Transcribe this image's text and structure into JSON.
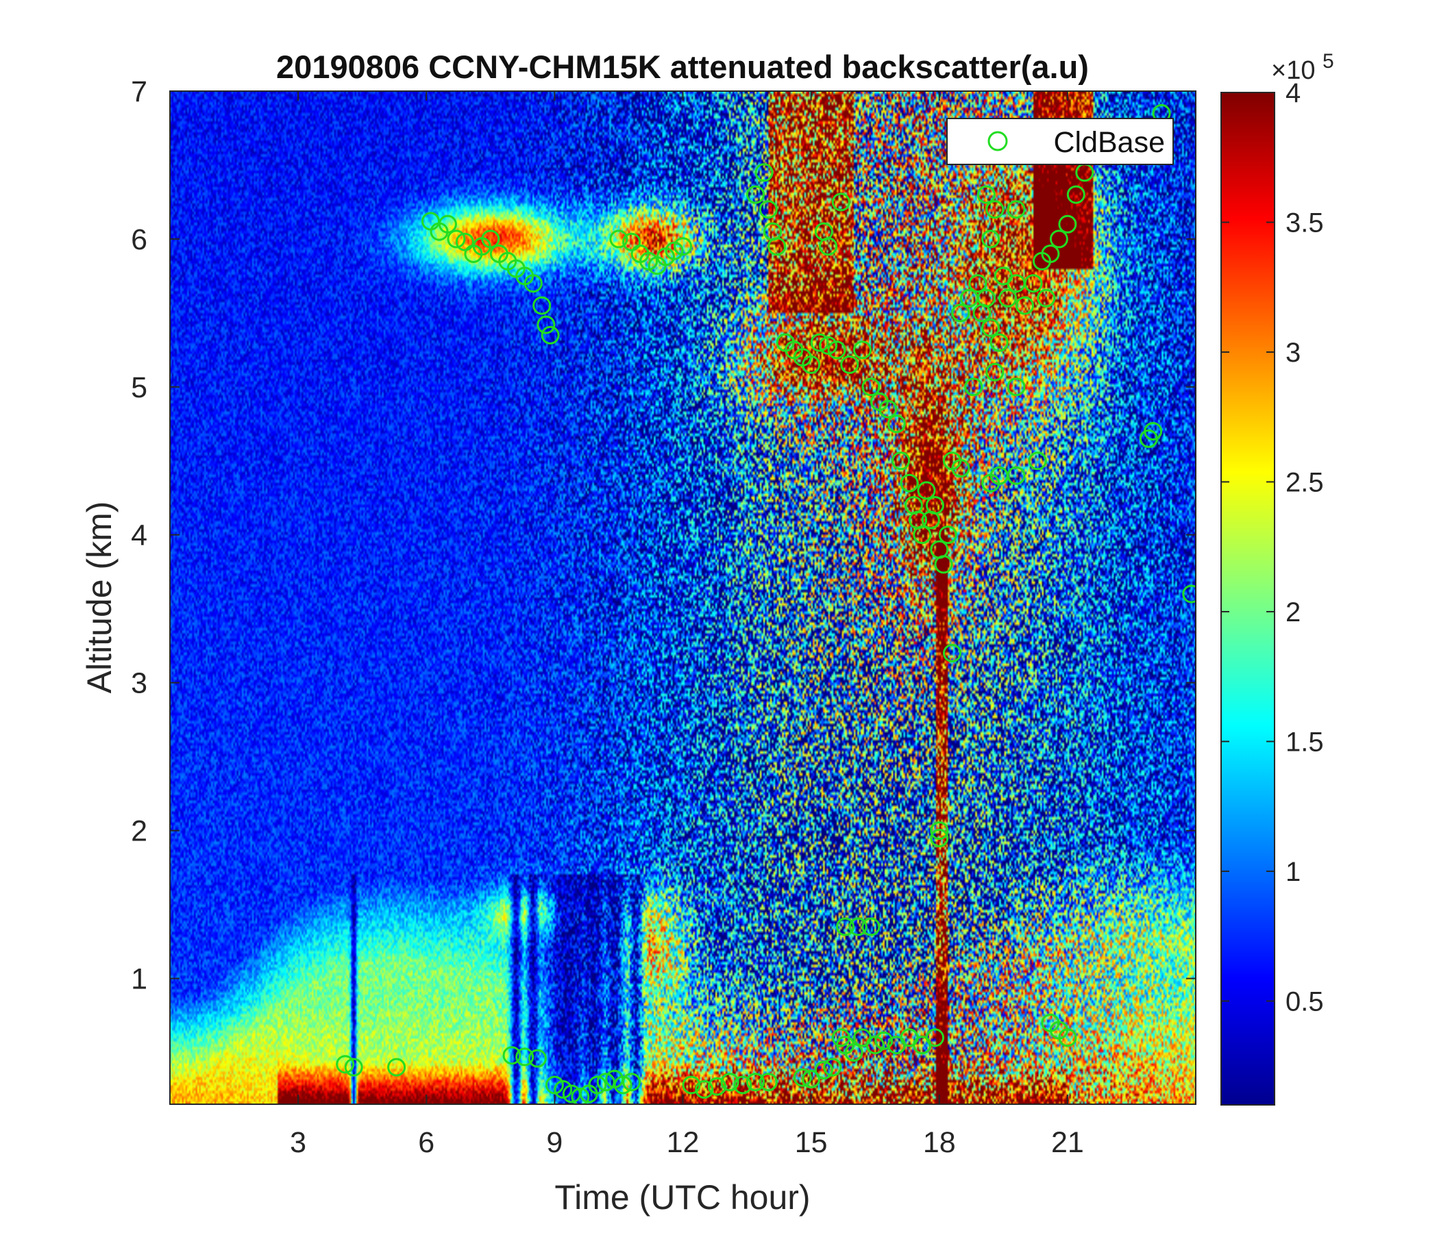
{
  "chart_data": {
    "type": "heatmap",
    "title": "20190806 CCNY-CHM15K attenuated backscatter(a.u)",
    "xlabel": "Time (UTC hour)",
    "ylabel": "Altitude (km)",
    "xlim": [
      0,
      24
    ],
    "ylim": [
      0.15,
      7
    ],
    "x_ticks": [
      3,
      6,
      9,
      12,
      15,
      18,
      21
    ],
    "x_tick_labels": [
      "3",
      "6",
      "9",
      "12",
      "15",
      "18",
      "21"
    ],
    "y_ticks": [
      1,
      2,
      3,
      4,
      5,
      6,
      7
    ],
    "y_tick_labels": [
      "1",
      "2",
      "3",
      "4",
      "5",
      "6",
      "7"
    ],
    "colormap": "jet",
    "colorbar": {
      "range": [
        0.1,
        4
      ],
      "ticks": [
        0.5,
        1,
        1.5,
        2,
        2.5,
        3,
        3.5,
        4
      ],
      "tick_labels": [
        "0.5",
        "1",
        "1.5",
        "2",
        "2.5",
        "3",
        "3.5",
        "4"
      ],
      "exponent_label": "×10",
      "exponent_power": "5"
    },
    "legend": {
      "position": "top-right",
      "entries": [
        "CldBase"
      ]
    },
    "colors": {
      "marker": "#22dd22",
      "background": "#ffffff",
      "text": "#1a1a1a"
    },
    "series": [
      {
        "name": "CldBase",
        "marker": "circle",
        "points": [
          [
            4.1,
            0.42
          ],
          [
            4.3,
            0.4
          ],
          [
            5.3,
            0.4
          ],
          [
            6.1,
            6.12
          ],
          [
            6.3,
            6.05
          ],
          [
            6.5,
            6.1
          ],
          [
            6.7,
            6.0
          ],
          [
            6.9,
            5.98
          ],
          [
            7.1,
            5.9
          ],
          [
            7.3,
            5.95
          ],
          [
            7.5,
            6.0
          ],
          [
            7.7,
            5.9
          ],
          [
            7.9,
            5.85
          ],
          [
            8.1,
            5.8
          ],
          [
            8.3,
            5.75
          ],
          [
            8.5,
            5.7
          ],
          [
            8.7,
            5.55
          ],
          [
            8.8,
            5.42
          ],
          [
            8.9,
            5.35
          ],
          [
            8.0,
            0.48
          ],
          [
            8.3,
            0.47
          ],
          [
            8.6,
            0.46
          ],
          [
            9.0,
            0.28
          ],
          [
            9.2,
            0.25
          ],
          [
            9.4,
            0.22
          ],
          [
            9.6,
            0.2
          ],
          [
            9.8,
            0.22
          ],
          [
            10.0,
            0.28
          ],
          [
            10.2,
            0.3
          ],
          [
            10.4,
            0.32
          ],
          [
            10.6,
            0.28
          ],
          [
            10.8,
            0.3
          ],
          [
            10.5,
            6.0
          ],
          [
            10.8,
            5.98
          ],
          [
            11.0,
            5.9
          ],
          [
            11.2,
            5.85
          ],
          [
            11.4,
            5.82
          ],
          [
            11.6,
            5.88
          ],
          [
            11.8,
            5.92
          ],
          [
            12.0,
            5.95
          ],
          [
            12.2,
            0.28
          ],
          [
            12.5,
            0.25
          ],
          [
            12.8,
            0.27
          ],
          [
            13.1,
            0.3
          ],
          [
            13.4,
            0.28
          ],
          [
            13.7,
            0.3
          ],
          [
            14.0,
            0.3
          ],
          [
            13.7,
            6.3
          ],
          [
            13.9,
            6.45
          ],
          [
            14.0,
            6.2
          ],
          [
            14.1,
            6.05
          ],
          [
            14.2,
            5.95
          ],
          [
            15.3,
            6.05
          ],
          [
            15.4,
            5.95
          ],
          [
            15.7,
            6.25
          ],
          [
            14.4,
            5.3
          ],
          [
            14.6,
            5.25
          ],
          [
            14.8,
            5.2
          ],
          [
            15.0,
            5.15
          ],
          [
            15.2,
            5.3
          ],
          [
            15.4,
            5.28
          ],
          [
            15.6,
            5.25
          ],
          [
            15.9,
            5.15
          ],
          [
            16.2,
            5.25
          ],
          [
            16.4,
            5.0
          ],
          [
            16.6,
            4.9
          ],
          [
            16.8,
            4.85
          ],
          [
            17.0,
            4.75
          ],
          [
            17.1,
            4.5
          ],
          [
            17.3,
            4.35
          ],
          [
            17.4,
            4.2
          ],
          [
            17.5,
            4.1
          ],
          [
            17.6,
            4.0
          ],
          [
            17.7,
            4.3
          ],
          [
            17.8,
            4.1
          ],
          [
            17.9,
            4.2
          ],
          [
            18.0,
            3.9
          ],
          [
            18.1,
            3.8
          ],
          [
            18.2,
            4.0
          ],
          [
            18.3,
            4.5
          ],
          [
            18.5,
            4.45
          ],
          [
            18.3,
            3.2
          ],
          [
            18.0,
            2.0
          ],
          [
            18.0,
            1.95
          ],
          [
            19.2,
            4.35
          ],
          [
            19.4,
            4.4
          ],
          [
            19.8,
            4.4
          ],
          [
            20.3,
            4.5
          ],
          [
            18.5,
            5.5
          ],
          [
            18.7,
            5.6
          ],
          [
            18.9,
            5.7
          ],
          [
            19.0,
            5.5
          ],
          [
            19.1,
            5.6
          ],
          [
            19.2,
            5.4
          ],
          [
            19.3,
            5.1
          ],
          [
            19.4,
            5.3
          ],
          [
            19.5,
            5.75
          ],
          [
            19.6,
            5.6
          ],
          [
            19.8,
            5.7
          ],
          [
            20.0,
            5.55
          ],
          [
            20.2,
            5.7
          ],
          [
            20.4,
            5.85
          ],
          [
            20.6,
            5.9
          ],
          [
            20.8,
            6.0
          ],
          [
            21.0,
            6.1
          ],
          [
            21.2,
            6.3
          ],
          [
            21.4,
            6.45
          ],
          [
            21.5,
            6.6
          ],
          [
            19.2,
            6.0
          ],
          [
            19.3,
            6.2
          ],
          [
            19.1,
            6.3
          ],
          [
            19.8,
            6.2
          ],
          [
            20.5,
            5.6
          ],
          [
            18.8,
            5.0
          ],
          [
            19.8,
            5.0
          ],
          [
            22.9,
            4.65
          ],
          [
            23.0,
            4.7
          ],
          [
            23.2,
            6.85
          ],
          [
            23.9,
            3.6
          ],
          [
            14.8,
            0.33
          ],
          [
            15.0,
            0.32
          ],
          [
            15.3,
            0.38
          ],
          [
            15.5,
            0.4
          ],
          [
            15.7,
            0.6
          ],
          [
            15.8,
            0.55
          ],
          [
            16.0,
            0.5
          ],
          [
            16.2,
            0.6
          ],
          [
            16.5,
            0.55
          ],
          [
            16.7,
            0.58
          ],
          [
            17.0,
            0.55
          ],
          [
            17.3,
            0.6
          ],
          [
            17.6,
            0.55
          ],
          [
            17.9,
            0.6
          ],
          [
            15.8,
            1.35
          ],
          [
            16.1,
            1.35
          ],
          [
            16.4,
            1.35
          ],
          [
            20.6,
            0.7
          ],
          [
            20.8,
            0.65
          ],
          [
            21.0,
            0.6
          ]
        ]
      }
    ]
  }
}
